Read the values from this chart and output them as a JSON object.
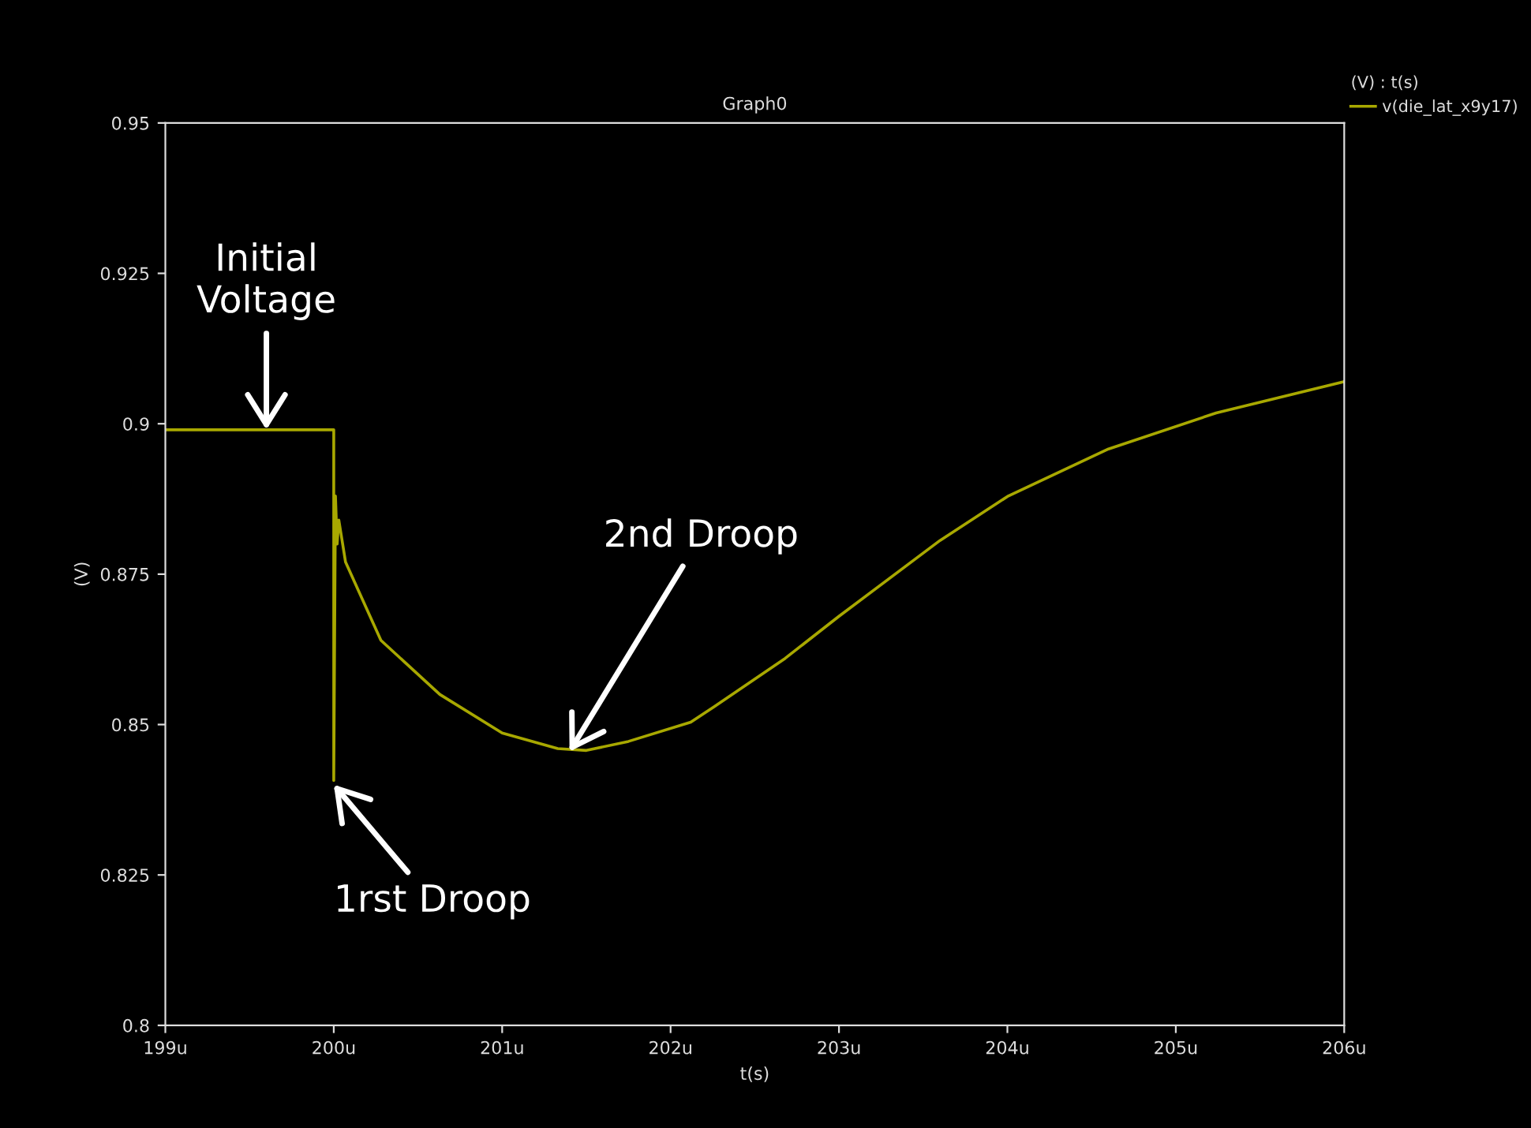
{
  "chart_data": {
    "type": "line",
    "title": "Graph0",
    "xlabel": "t(s)",
    "ylabel": "(V)",
    "legend_title": "(V) : t(s)",
    "x": [
      199,
      200,
      200,
      200.01,
      200.02,
      200.03,
      200.07,
      200.28,
      200.63,
      201.0,
      201.33,
      201.5,
      201.75,
      202.12,
      202.26,
      202.68,
      203.0,
      203.6,
      204.0,
      204.6,
      205.24,
      206
    ],
    "series": [
      {
        "name": "v(die_lat_x9y17)",
        "color": "#a8a800",
        "values": [
          0.899,
          0.899,
          0.8407,
          0.888,
          0.88,
          0.884,
          0.877,
          0.864,
          0.855,
          0.8486,
          0.846,
          0.8457,
          0.8472,
          0.8504,
          0.853,
          0.861,
          0.868,
          0.8806,
          0.8879,
          0.8958,
          0.9018,
          0.907
        ]
      }
    ],
    "xlim": [
      199,
      206
    ],
    "xticks": [
      {
        "value": 199,
        "label": "199u"
      },
      {
        "value": 200,
        "label": "200u"
      },
      {
        "value": 201,
        "label": "201u"
      },
      {
        "value": 202,
        "label": "202u"
      },
      {
        "value": 203,
        "label": "203u"
      },
      {
        "value": 204,
        "label": "204u"
      },
      {
        "value": 205,
        "label": "205u"
      },
      {
        "value": 206,
        "label": "206u"
      }
    ],
    "ylim": [
      0.8,
      0.95
    ],
    "yticks": [
      0.8,
      0.825,
      0.85,
      0.875,
      0.9,
      0.925,
      0.95
    ],
    "grid": false,
    "legend": "top right",
    "marker": "none",
    "line_style": "solid",
    "annotations": [
      {
        "text": "Initial\nVoltage",
        "x": 199.6,
        "y": 0.899
      },
      {
        "text": "2nd Droop",
        "x": 201.4,
        "y": 0.8455
      },
      {
        "text": "1rst Droop",
        "x": 200.0,
        "y": 0.84
      }
    ]
  }
}
